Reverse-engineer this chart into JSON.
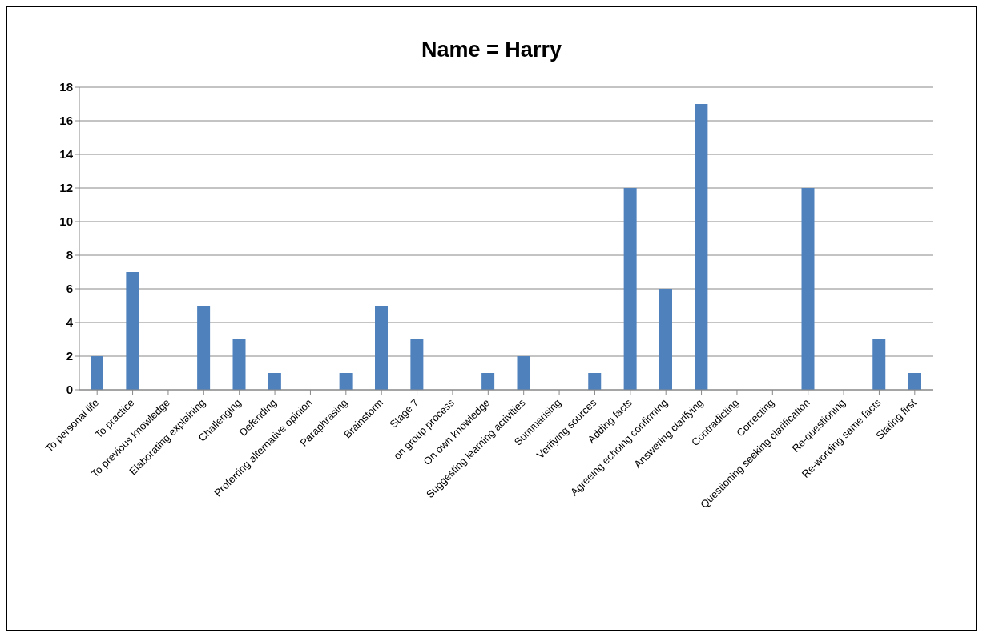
{
  "chart_data": {
    "type": "bar",
    "title": "Name = Harry",
    "categories": [
      "To personal life",
      "To practice",
      "To previous knowledge",
      "Elaborating explaining",
      "Challenging",
      "Defending",
      "Proferring alternative opinion",
      "Paraphrasing",
      "Brainstorm",
      "Stage 7",
      "on group process",
      "On own knowledge",
      "Suggesting learning activities",
      "Summarising",
      "Verifying sources",
      "Adding facts",
      "Agreeing echoing confirming",
      "Answering clarifying",
      "Contradicting",
      "Correcting",
      "Questioning seeking clarification",
      "Re-questioning",
      "Re-wording same facts",
      "Stating first"
    ],
    "values": [
      2,
      7,
      0,
      5,
      3,
      1,
      0,
      1,
      5,
      3,
      0,
      1,
      2,
      0,
      1,
      12,
      6,
      17,
      0,
      0,
      12,
      0,
      3,
      1
    ],
    "color": "#4f81bd",
    "ylim": [
      0,
      18
    ],
    "yticks": [
      0,
      2,
      4,
      6,
      8,
      10,
      12,
      14,
      16,
      18
    ],
    "grid": "y",
    "legend": false
  }
}
